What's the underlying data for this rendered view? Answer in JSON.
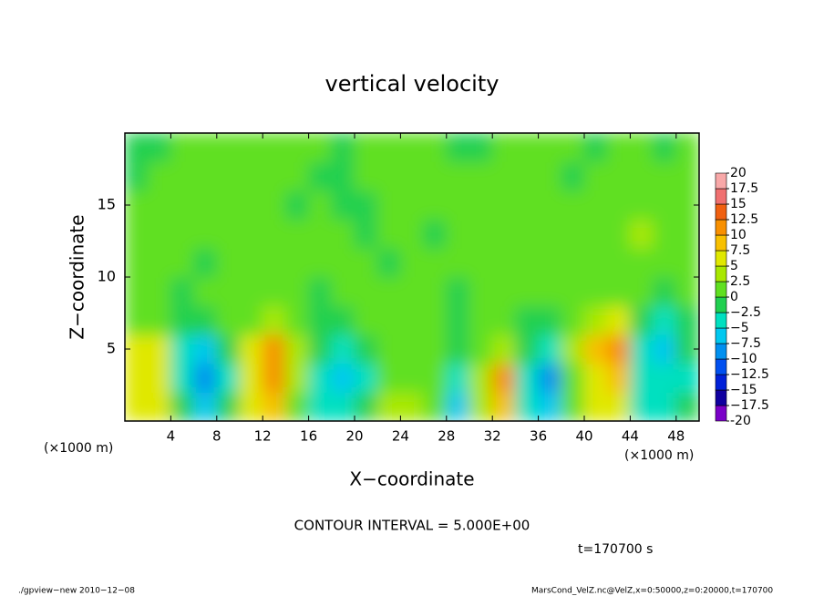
{
  "chart_data": {
    "type": "heatmap",
    "title": "vertical velocity",
    "x_label": "X−coordinate",
    "y_label": "Z−coordinate",
    "x_unit_left": "(×1000 m)",
    "x_unit_right": "(×1000 m)",
    "contour_interval": "CONTOUR INTERVAL = 5.000E+00",
    "time": "t=170700 s",
    "footer_left": "./gpview−new   2010−12−08",
    "footer_right": "MarsCond_VelZ.nc@VelZ,x=0:50000,z=0:20000,t=170700",
    "xlim": [
      0,
      50
    ],
    "ylim": [
      0,
      20
    ],
    "xticks": [
      4,
      8,
      12,
      16,
      20,
      24,
      28,
      32,
      36,
      40,
      44,
      48
    ],
    "yticks": [
      5,
      10,
      15
    ],
    "x": [
      1,
      3,
      5,
      7,
      9,
      11,
      13,
      15,
      17,
      19,
      21,
      23,
      25,
      27,
      29,
      31,
      33,
      35,
      37,
      39,
      41,
      43,
      45,
      47,
      49
    ],
    "y": [
      1,
      3,
      5,
      7,
      9,
      11,
      13,
      15,
      17,
      19
    ],
    "z": [
      [
        6,
        5,
        -2,
        -6,
        -2,
        5,
        8,
        2,
        -3,
        -4,
        -1,
        3,
        3,
        1,
        -6,
        3,
        8,
        -3,
        -7,
        2,
        6,
        5,
        -4,
        -3,
        -2
      ],
      [
        7,
        6,
        -4,
        -8,
        -3,
        7,
        11,
        3,
        -4,
        -7,
        -3,
        2,
        2,
        1,
        -4,
        4,
        10,
        -3,
        -8,
        2,
        7,
        9,
        -5,
        -5,
        -3
      ],
      [
        6,
        5,
        -3,
        -6,
        -2,
        5,
        10,
        3,
        -2,
        -4,
        -2,
        1,
        1,
        2,
        -2,
        2,
        4,
        -2,
        -4,
        3,
        8,
        11,
        -4,
        -6,
        -2
      ],
      [
        2,
        2,
        -1,
        -2,
        0,
        2,
        3,
        1,
        -1,
        -1,
        0,
        1,
        1,
        1,
        -1,
        1,
        1,
        -1,
        -1,
        2,
        4,
        5,
        -2,
        -4,
        -1
      ],
      [
        1,
        0,
        -1,
        0,
        1,
        1,
        1,
        0,
        -1,
        1,
        0,
        1,
        0,
        1,
        -1,
        0,
        0,
        1,
        0,
        1,
        2,
        2,
        1,
        -1,
        0
      ],
      [
        1,
        0,
        1,
        -1,
        0,
        1,
        0,
        1,
        0,
        1,
        0,
        -1,
        0,
        1,
        1,
        0,
        1,
        0,
        1,
        1,
        0,
        2,
        1,
        1,
        0
      ],
      [
        1,
        1,
        0,
        1,
        1,
        0,
        1,
        0,
        1,
        1,
        -1,
        1,
        0,
        -1,
        0,
        1,
        0,
        1,
        0,
        1,
        1,
        2,
        3,
        1,
        1
      ],
      [
        1,
        0,
        1,
        1,
        0,
        1,
        1,
        -1,
        0,
        -1,
        -1,
        1,
        1,
        0,
        1,
        0,
        1,
        1,
        0,
        1,
        1,
        1,
        2,
        1,
        1
      ],
      [
        -1,
        1,
        1,
        0,
        1,
        1,
        0,
        1,
        -1,
        -1,
        1,
        1,
        0,
        1,
        0,
        1,
        1,
        0,
        1,
        -1,
        0,
        1,
        1,
        1,
        1
      ],
      [
        -1,
        -1,
        1,
        1,
        0,
        1,
        1,
        1,
        1,
        -1,
        1,
        1,
        1,
        0,
        -1,
        -1,
        1,
        1,
        1,
        1,
        -1,
        1,
        1,
        -1,
        1
      ]
    ],
    "levels": [
      -20,
      {
        "value": -17.5,
        "label": "−17.5"
      },
      {
        "value": -15,
        "label": "−15"
      },
      {
        "value": -12.5,
        "label": "−12.5"
      },
      {
        "value": -10,
        "label": "−10"
      },
      {
        "value": -7.5,
        "label": "−7.5"
      },
      {
        "value": -5,
        "label": "−5"
      },
      {
        "value": -2.5,
        "label": "−2.5"
      },
      0,
      2.5,
      5,
      7.5,
      10,
      12.5,
      15,
      17.5,
      20
    ],
    "colors": [
      "#7a00c8",
      "#1000a0",
      "#0020d8",
      "#0050f0",
      "#0090f0",
      "#00c8f0",
      "#00e0c0",
      "#20d050",
      "#60e020",
      "#a8e800",
      "#e0e800",
      "#f8c000",
      "#f89000",
      "#f06010",
      "#f07070",
      "#f8a8a8"
    ]
  }
}
